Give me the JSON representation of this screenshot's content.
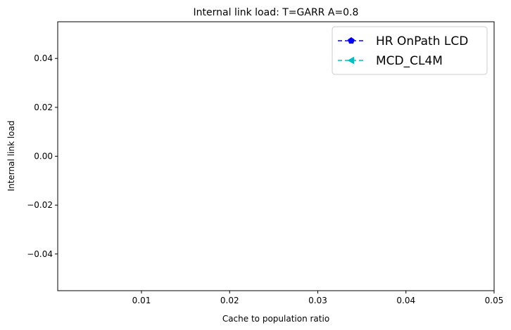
{
  "chart_data": {
    "type": "line",
    "title": "Internal link load: T=GARR A=0.8",
    "xlabel": "Cache to population ratio",
    "ylabel": "Internal link load",
    "xlim": [
      0.0005,
      0.05
    ],
    "ylim": [
      -0.055,
      0.055
    ],
    "x_ticks": [
      0.01,
      0.02,
      0.03,
      0.04,
      0.05
    ],
    "x_tick_labels": [
      "0.01",
      "0.02",
      "0.03",
      "0.04",
      "0.05"
    ],
    "y_ticks": [
      0.04,
      0.02,
      0.0,
      -0.02,
      -0.04
    ],
    "y_tick_labels": [
      "0.04",
      "0.02",
      "0.00",
      "−0.02",
      "−0.04"
    ],
    "grid": false,
    "legend_position": "top-right",
    "series": [
      {
        "name": "HR OnPath LCD",
        "color": "#0000ff",
        "marker": "pentagon",
        "linestyle": "dashed",
        "x": [],
        "y": []
      },
      {
        "name": "MCD_CL4M",
        "color": "#00bfbf",
        "marker": "triangle-left",
        "linestyle": "dashed",
        "x": [],
        "y": []
      }
    ]
  }
}
